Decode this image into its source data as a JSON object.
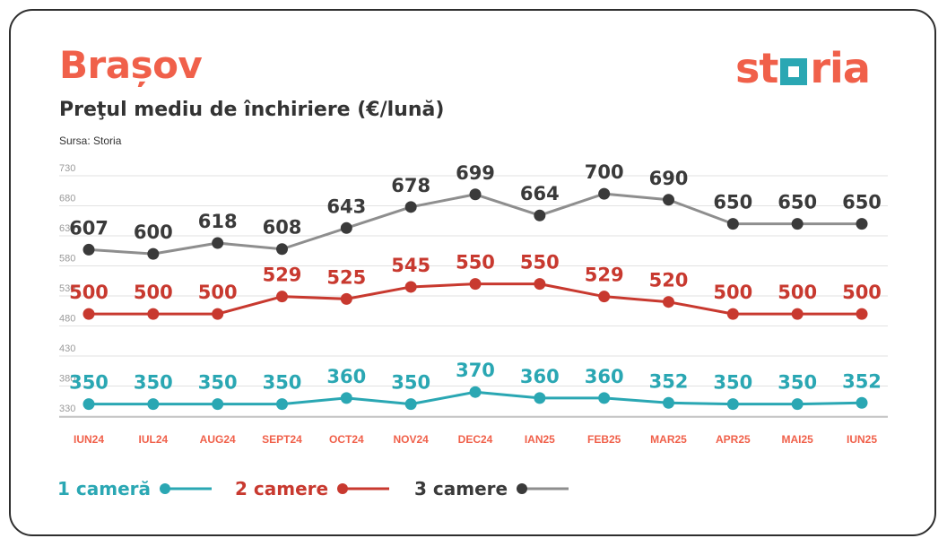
{
  "header": {
    "title": "Brașov",
    "subtitle": "Preţul mediu de închiriere (€/lună)",
    "source": "Sursa: Storia",
    "logo_text": "storia"
  },
  "colors": {
    "accent": "#f0604a",
    "series_1": "#2aa7b3",
    "series_2": "#c8392f",
    "series_3": "#3a3a3a",
    "series_3_line": "#8e8e8e",
    "grid": "#e2e2e2",
    "tick": "#9a9a9a"
  },
  "chart_data": {
    "type": "line",
    "title": "Preţul mediu de închiriere (€/lună)",
    "categories": [
      "IUN24",
      "IUL24",
      "AUG24",
      "SEPT24",
      "OCT24",
      "NOV24",
      "DEC24",
      "IAN25",
      "FEB25",
      "MAR25",
      "APR25",
      "MAI25",
      "IUN25"
    ],
    "y_ticks": [
      730,
      680,
      630,
      580,
      530,
      480,
      430,
      380,
      330
    ],
    "ylim": [
      330,
      730
    ],
    "grid": true,
    "legend_position": "bottom-left",
    "series": [
      {
        "name": "1 cameră",
        "color": "#2aa7b3",
        "line_color": "#2aa7b3",
        "values": [
          350,
          350,
          350,
          350,
          360,
          350,
          370,
          360,
          360,
          352,
          350,
          350,
          352
        ]
      },
      {
        "name": "2 camere",
        "color": "#c8392f",
        "line_color": "#c8392f",
        "values": [
          500,
          500,
          500,
          529,
          525,
          545,
          550,
          550,
          529,
          520,
          500,
          500,
          500
        ]
      },
      {
        "name": "3 camere",
        "color": "#3a3a3a",
        "line_color": "#8e8e8e",
        "values": [
          607,
          600,
          618,
          608,
          643,
          678,
          699,
          664,
          700,
          690,
          650,
          650,
          650
        ]
      }
    ]
  }
}
